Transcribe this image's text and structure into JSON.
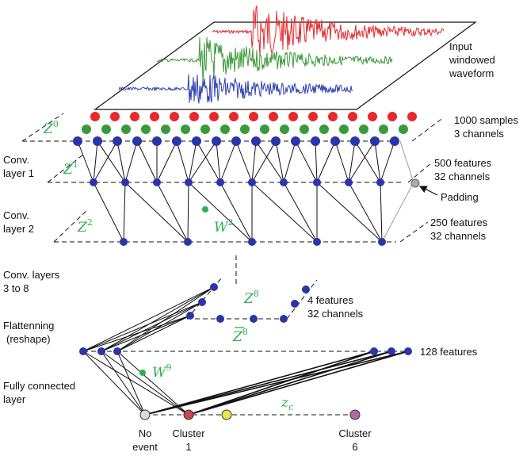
{
  "labels": {
    "input_line1": "Input",
    "input_line2": "windowed",
    "input_line3": "waveform",
    "samples_line1": "1000 samples",
    "samples_line2": "3 channels",
    "conv1_line1": "Conv.",
    "conv1_line2": "layer 1",
    "feat500_line1": "500 features",
    "feat500_line2": "32 channels",
    "padding": "Padding",
    "conv2_line1": "Conv.",
    "conv2_line2": "layer 2",
    "feat250_line1": "250 features",
    "feat250_line2": "32 channels",
    "conv38_line1": "Conv. layers",
    "conv38_line2": "3 to 8",
    "feat4_line1": "4 features",
    "feat4_line2": "32 channels",
    "flatten_line1": "Flattenning",
    "flatten_line2": "(reshape)",
    "feat128": "128 features",
    "fc_line1": "Fully connected",
    "fc_line2": "layer",
    "noevent_line1": "No",
    "noevent_line2": "event",
    "cluster1_line1": "Cluster",
    "cluster1_line2": "1",
    "cluster6_line1": "Cluster",
    "cluster6_line2": "6"
  },
  "math": {
    "z0": "Z",
    "z0_sup": "0",
    "z1": "Z",
    "z1_sup": "1",
    "z2": "Z",
    "z2_sup": "2",
    "w2": "W",
    "w2_sup": "2",
    "z8": "Z",
    "z8_sup": "8",
    "z8bar": "Z",
    "z8bar_sup": "8",
    "w9": "W",
    "w9_sup": "9",
    "zc": "z",
    "zc_sub": "c"
  },
  "colors": {
    "red": "#e8282b",
    "green": "#3a9a3a",
    "blue": "#2b3fb0",
    "node_blue": "#2a35a8",
    "math_green": "#2bb24c",
    "cluster1": "#c8474a",
    "cluster_yellow": "#e6e650",
    "cluster6": "#b06aa8",
    "padding_gray": "#999999"
  }
}
